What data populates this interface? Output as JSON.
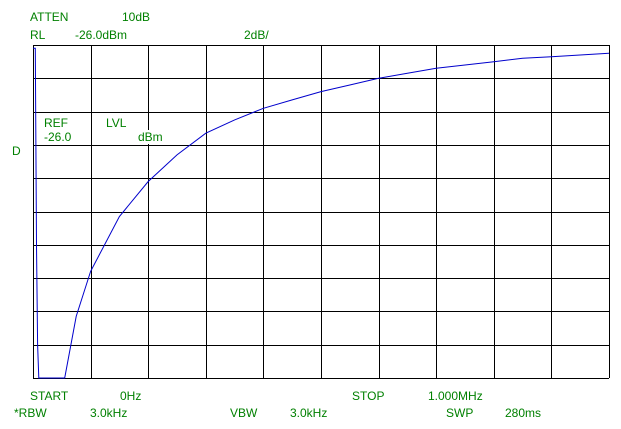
{
  "header": {
    "atten_label": "ATTEN",
    "atten_value": "10dB",
    "rl_label": "RL",
    "rl_value": "-26.0dBm",
    "scale": "2dB/"
  },
  "ref_panel": {
    "ref_label": "REF",
    "lvl_label": "LVL",
    "ref_value": "-26.0",
    "unit": "dBm"
  },
  "marker_d": "D",
  "footer": {
    "start_label": "START",
    "start_value": "0Hz",
    "stop_label": "STOP",
    "stop_value": "1.000MHz",
    "rbw_label": "*RBW",
    "rbw_value": "3.0kHz",
    "vbw_label": "VBW",
    "vbw_value": "3.0kHz",
    "swp_label": "SWP",
    "swp_value": "280ms"
  },
  "colors": {
    "text": "#008000",
    "trace": "#0000cc",
    "grid": "#000000"
  },
  "chart_data": {
    "type": "line",
    "x_unit": "MHz",
    "y_unit": "dBm",
    "xlim": [
      0,
      1.0
    ],
    "ylim": [
      -46,
      -26
    ],
    "grid": true,
    "series": [
      {
        "x": [
          0.0,
          0.004,
          0.006,
          0.008,
          0.01,
          0.055,
          0.075,
          0.1,
          0.15,
          0.2,
          0.25,
          0.3,
          0.35,
          0.4,
          0.45,
          0.5,
          0.55,
          0.6,
          0.65,
          0.7,
          0.75,
          0.8,
          0.85,
          0.9,
          0.95,
          1.0
        ],
        "y": [
          -26.2,
          -26.2,
          -38,
          -44,
          -46,
          -46,
          -42.3,
          -39.6,
          -36.3,
          -34.2,
          -32.6,
          -31.3,
          -30.5,
          -29.8,
          -29.3,
          -28.8,
          -28.4,
          -28.0,
          -27.7,
          -27.4,
          -27.2,
          -27.0,
          -26.8,
          -26.7,
          -26.6,
          -26.5
        ]
      }
    ]
  }
}
